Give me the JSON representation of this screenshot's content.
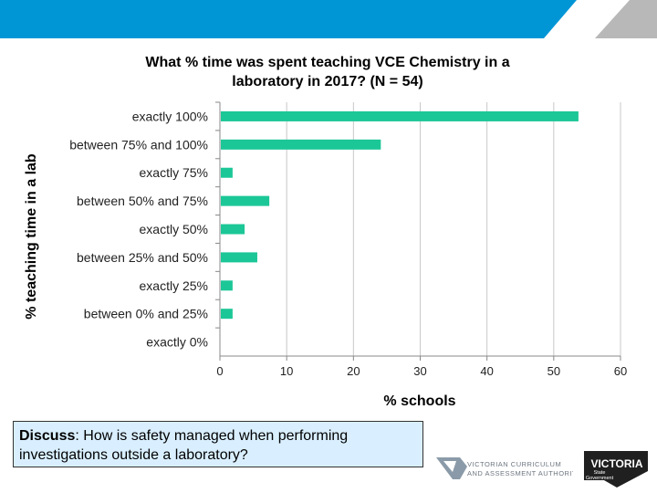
{
  "chart_data": {
    "type": "bar",
    "orientation": "horizontal",
    "title_line1": "What % time was spent teaching VCE Chemistry in a",
    "title_line2": "laboratory in 2017? (N = 54)",
    "xlabel": "% schools",
    "ylabel": "% teaching time in a lab",
    "categories": [
      "exactly 100%",
      "between 75% and 100%",
      "exactly 75%",
      "between 50% and 75%",
      "exactly 50%",
      "between 25% and 50%",
      "exactly 25%",
      "between 0% and 25%",
      "exactly 0%"
    ],
    "values": [
      53.7,
      24.1,
      1.9,
      7.4,
      3.7,
      5.6,
      1.9,
      1.9,
      0
    ],
    "xlim": [
      0,
      60
    ],
    "xticks": [
      0,
      10,
      20,
      30,
      40,
      50,
      60
    ],
    "grid": "vertical",
    "bar_color": "#1cc797"
  },
  "discuss": {
    "label": "Discuss",
    "text": ": How is safety managed when performing investigations outside a laboratory?"
  },
  "logos": {
    "vcaa_line1": "VICTORIAN CURRICULUM",
    "vcaa_line2": "AND ASSESSMENT AUTHORITY",
    "victoria": "VICTORIA",
    "victoria_sub1": "State",
    "victoria_sub2": "Government"
  },
  "colors": {
    "banner": "#0096d6",
    "banner_stripe": "#b8b8b8"
  }
}
